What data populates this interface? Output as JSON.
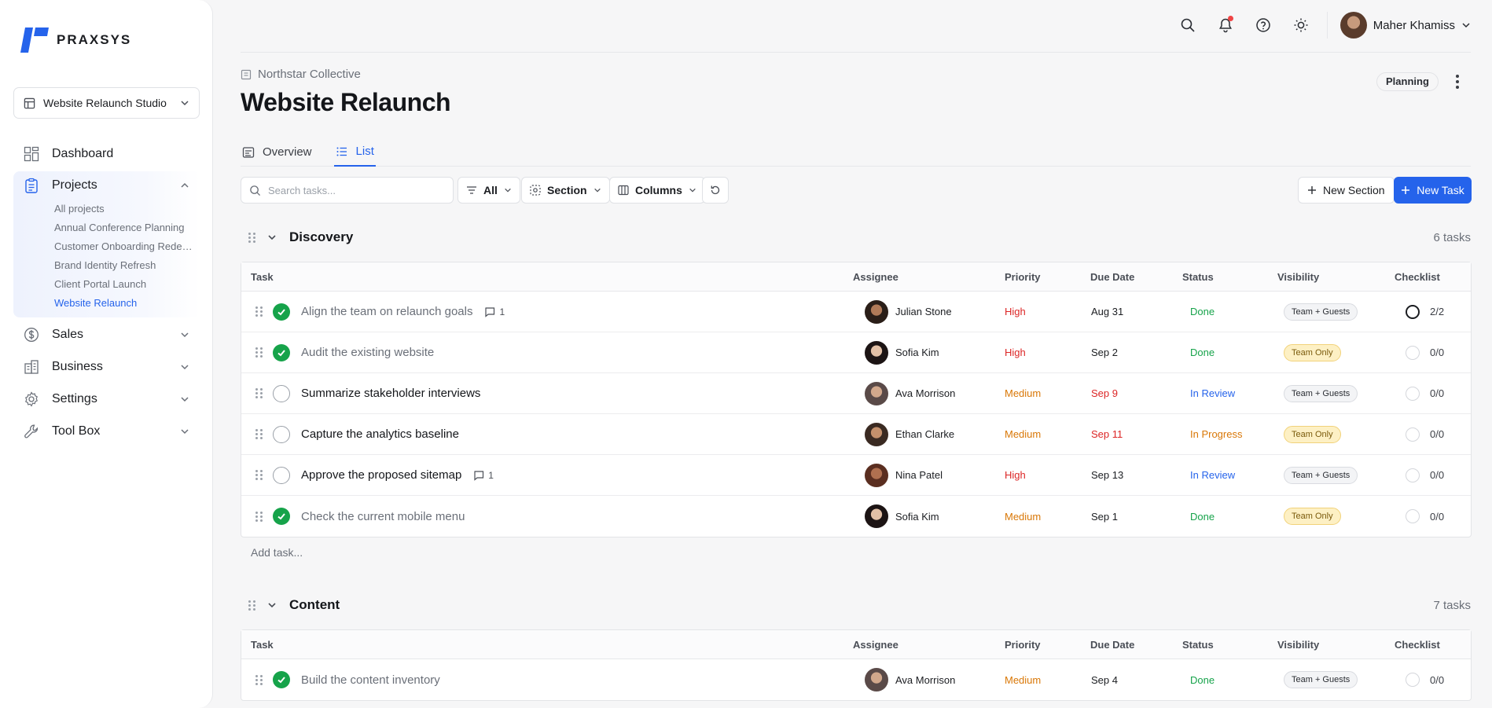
{
  "brand": {
    "name": "PRAXSYS",
    "accent": "#2563eb"
  },
  "workspace": {
    "selected": "Website Relaunch Studio"
  },
  "sidebar": {
    "items": [
      {
        "label": "Dashboard",
        "icon": "dashboard-icon"
      },
      {
        "label": "Projects",
        "icon": "clipboard-icon",
        "expanded": true,
        "sub": [
          "All projects",
          "Annual Conference Planning",
          "Customer Onboarding Redesign",
          "Brand Identity Refresh",
          "Client Portal Launch",
          "Website Relaunch"
        ],
        "active_sub": "Website Relaunch"
      },
      {
        "label": "Sales",
        "icon": "dollar-icon"
      },
      {
        "label": "Business",
        "icon": "building-icon"
      },
      {
        "label": "Settings",
        "icon": "gear-icon"
      },
      {
        "label": "Tool Box",
        "icon": "wrench-icon"
      }
    ]
  },
  "topbar": {
    "user_name": "Maher Khamiss",
    "has_notification": true
  },
  "header": {
    "org": "Northstar Collective",
    "title": "Website Relaunch",
    "status_badge": "Planning"
  },
  "tabs": [
    {
      "label": "Overview"
    },
    {
      "label": "List",
      "active": true
    }
  ],
  "toolbar": {
    "search_placeholder": "Search tasks...",
    "filter_label": "All",
    "section_label": "Section",
    "columns_label": "Columns",
    "new_section_label": "New Section",
    "new_task_label": "New Task"
  },
  "columns": [
    "Task",
    "Assignee",
    "Priority",
    "Due Date",
    "Status",
    "Visibility",
    "Checklist"
  ],
  "sections": [
    {
      "title": "Discovery",
      "count": "6 tasks",
      "add_task": "Add task...",
      "tasks": [
        {
          "name": "Align the team on relaunch goals",
          "done": true,
          "comments": "1",
          "assignee": "Julian Stone",
          "priority": "High",
          "due": "Aug 31",
          "due_late": false,
          "status": "Done",
          "visibility": "Team + Guests",
          "checklist": "2/2",
          "checklist_full": true
        },
        {
          "name": "Audit the existing website",
          "done": true,
          "comments": "",
          "assignee": "Sofia Kim",
          "priority": "High",
          "due": "Sep 2",
          "due_late": false,
          "status": "Done",
          "visibility": "Team Only",
          "checklist": "0/0",
          "checklist_full": false
        },
        {
          "name": "Summarize stakeholder interviews",
          "done": false,
          "comments": "",
          "assignee": "Ava Morrison",
          "priority": "Medium",
          "due": "Sep 9",
          "due_late": true,
          "status": "In Review",
          "visibility": "Team + Guests",
          "checklist": "0/0",
          "checklist_full": false
        },
        {
          "name": "Capture the analytics baseline",
          "done": false,
          "comments": "",
          "assignee": "Ethan Clarke",
          "priority": "Medium",
          "due": "Sep 11",
          "due_late": true,
          "status": "In Progress",
          "visibility": "Team Only",
          "checklist": "0/0",
          "checklist_full": false
        },
        {
          "name": "Approve the proposed sitemap",
          "done": false,
          "comments": "1",
          "assignee": "Nina Patel",
          "priority": "High",
          "due": "Sep 13",
          "due_late": false,
          "status": "In Review",
          "visibility": "Team + Guests",
          "checklist": "0/0",
          "checklist_full": false
        },
        {
          "name": "Check the current mobile menu",
          "done": true,
          "comments": "",
          "assignee": "Sofia Kim",
          "priority": "Medium",
          "due": "Sep 1",
          "due_late": false,
          "status": "Done",
          "visibility": "Team Only",
          "checklist": "0/0",
          "checklist_full": false
        }
      ]
    },
    {
      "title": "Content",
      "count": "7 tasks",
      "tasks": [
        {
          "name": "Build the content inventory",
          "done": true,
          "comments": "",
          "assignee": "Ava Morrison",
          "priority": "Medium",
          "due": "Sep 4",
          "due_late": false,
          "status": "Done",
          "visibility": "Team + Guests",
          "checklist": "0/0",
          "checklist_full": false
        }
      ]
    }
  ]
}
